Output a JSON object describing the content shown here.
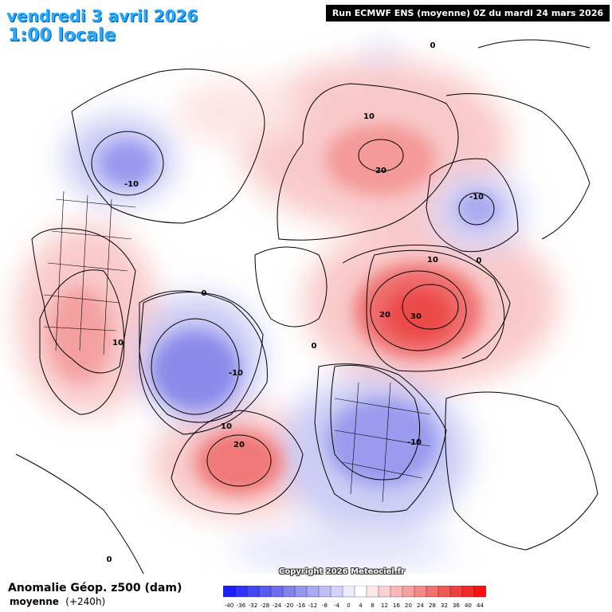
{
  "header": {
    "date": "vendredi 3 avril 2026",
    "local_time": "1:00 locale",
    "run_info": "Run ECMWF ENS (moyenne) 0Z du mardi 24 mars 2026"
  },
  "footer": {
    "variable_title": "Anomalie Géop. z500 (dam)",
    "variable_subtitle": "moyenne",
    "lead_time": "(+240h)",
    "copyright": "Copyright 2026 Meteociel.fr"
  },
  "colors": {
    "strong_negative": "#1010f0",
    "negative": "#8080f0",
    "weak_negative": "#d8d8f8",
    "neutral": "#ffffff",
    "weak_positive": "#fbd8d8",
    "positive": "#f09090",
    "strong_positive": "#f01010",
    "date_text": "#29a9ff"
  },
  "color_scale": {
    "labels": [
      "-40",
      "-36",
      "-32",
      "-28",
      "-24",
      "-20",
      "-16",
      "-12",
      "-8",
      "-4",
      "0",
      "4",
      "8",
      "12",
      "16",
      "20",
      "24",
      "28",
      "32",
      "36",
      "40",
      "44"
    ],
    "colors": [
      "#1e1efa",
      "#3232f6",
      "#4646f2",
      "#5a5aee",
      "#6e6eec",
      "#8282ea",
      "#9696ee",
      "#aaaaf2",
      "#bebef6",
      "#d2d2fa",
      "#ececfe",
      "#ffffff",
      "#fde6e6",
      "#fbd0d0",
      "#f9b8b8",
      "#f7a0a0",
      "#f58888",
      "#f37070",
      "#f15858",
      "#ef4040",
      "#f52828",
      "#fa1010"
    ]
  },
  "map": {
    "anomaly_centers": [
      {
        "name": "western-canada-low",
        "value": "-10"
      },
      {
        "name": "arctic-russia-high",
        "value": "20"
      },
      {
        "name": "central-asia-low",
        "value": "-10"
      },
      {
        "name": "scandinavia-russia-high",
        "value": "30"
      },
      {
        "name": "greenland-low",
        "value": "-10"
      },
      {
        "name": "north-atlantic-high",
        "value": "20"
      },
      {
        "name": "europe-low",
        "value": "-10"
      },
      {
        "name": "eastern-usa-high",
        "value": "10"
      }
    ],
    "contour_labels": {
      "zero_top": "0",
      "ten_russia": "10",
      "ten_scandinavia": "10",
      "twenty_scandinavia": "20",
      "zero_asia": "0",
      "zero_greenland": "0",
      "ten_atlantic": "10",
      "zero_bottom": "0",
      "zero_europe": "0"
    }
  }
}
